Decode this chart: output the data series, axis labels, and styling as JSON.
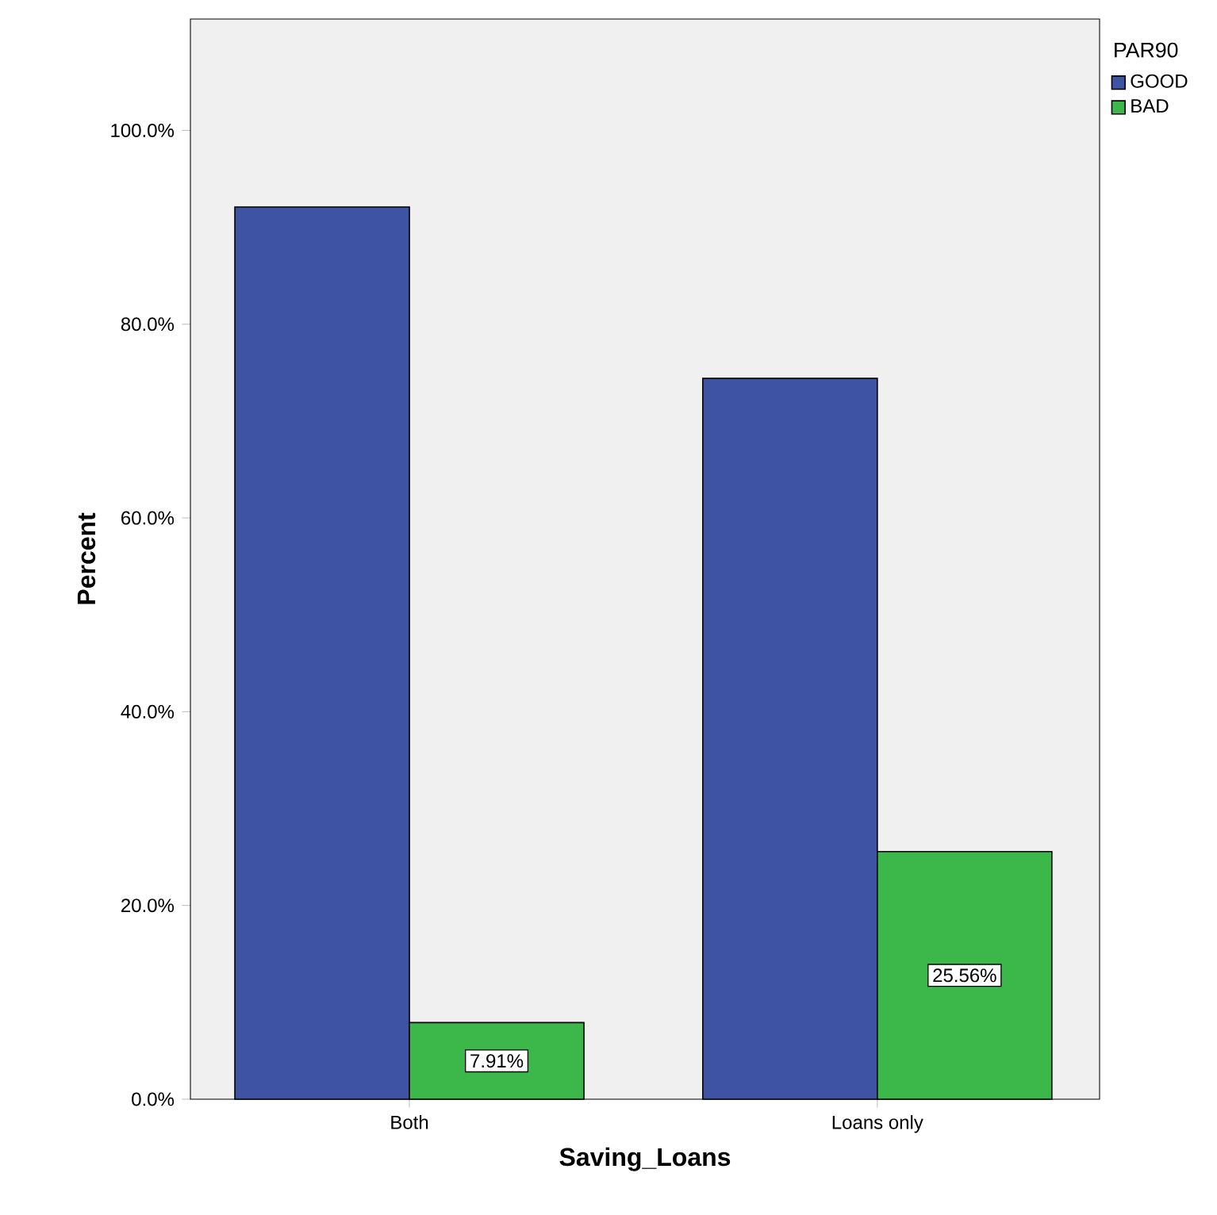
{
  "chart_data": {
    "type": "bar",
    "xlabel": "Saving_Loans",
    "ylabel": "Percent",
    "legend_title": "PAR90",
    "categories": [
      "Both",
      "Loans only"
    ],
    "series": [
      {
        "name": "GOOD",
        "color": "#3e53a4",
        "values": [
          92.1,
          74.4
        ]
      },
      {
        "name": "BAD",
        "color": "#3cb84a",
        "values": [
          7.91,
          25.56
        ],
        "value_labels": [
          "7.91%",
          "25.56%"
        ]
      }
    ],
    "ylim": [
      0,
      111.5
    ],
    "yticks": [
      {
        "value": 0,
        "label": "0.0%"
      },
      {
        "value": 20,
        "label": "20.0%"
      },
      {
        "value": 40,
        "label": "40.0%"
      },
      {
        "value": 60,
        "label": "60.0%"
      },
      {
        "value": 80,
        "label": "80.0%"
      },
      {
        "value": 100,
        "label": "100.0%"
      }
    ],
    "grid": false,
    "legend": "top right"
  }
}
